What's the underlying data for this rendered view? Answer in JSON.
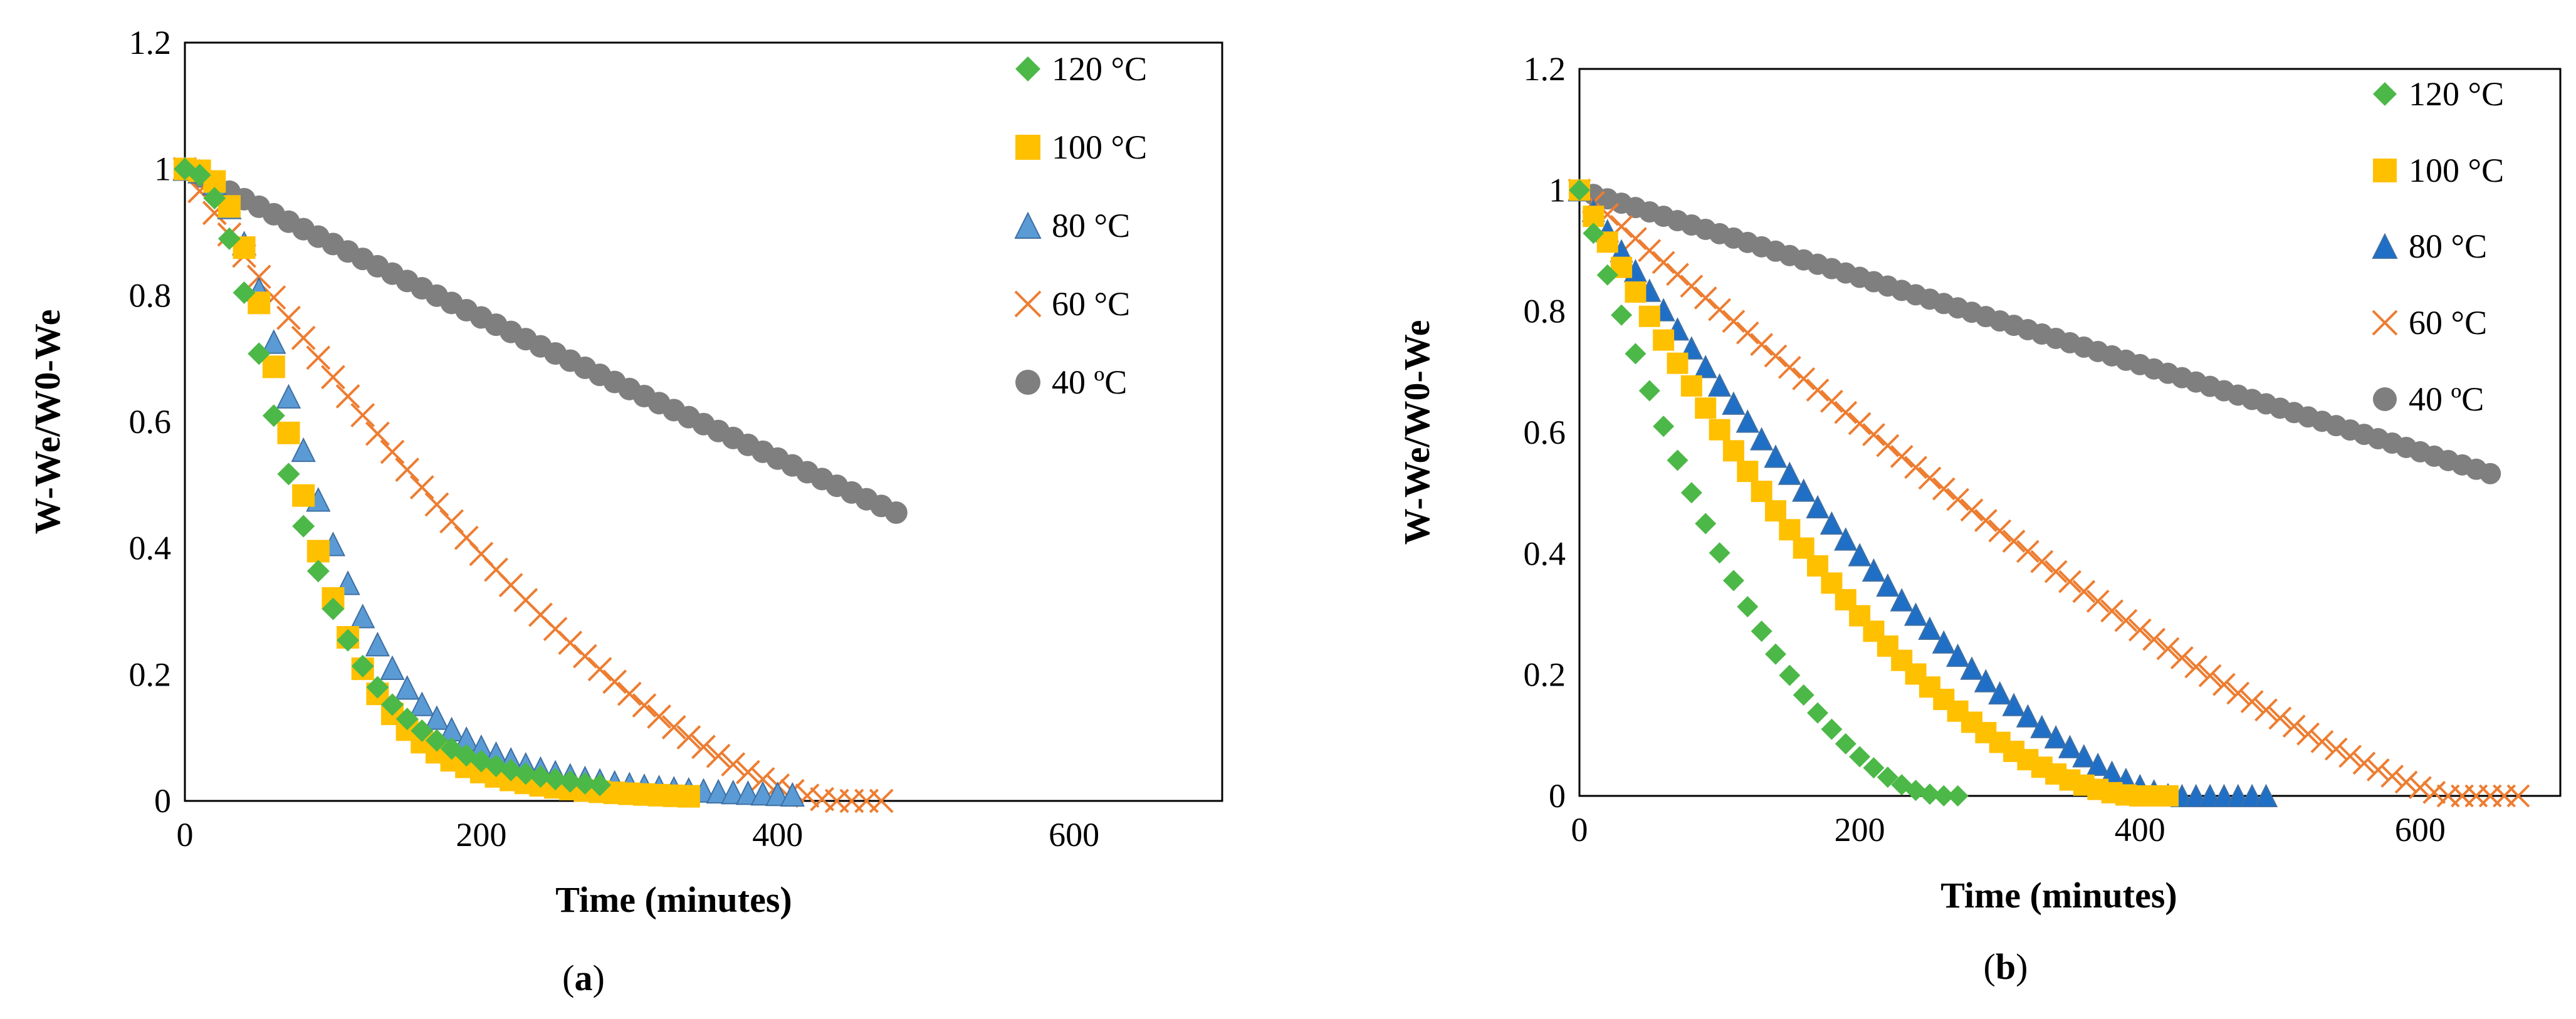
{
  "colors": {
    "120": "#4CB847",
    "100": "#FFC000",
    "80a": "#5B9BD5",
    "80b": "#1F6FC6",
    "60": "#ED7D31",
    "40": "#7F7F7F"
  },
  "chart_data": [
    {
      "id": "a",
      "type": "scatter",
      "caption_letter": "a",
      "xlabel": "Time (minutes)",
      "ylabel": "W-We/W0-We",
      "xlim": [
        0,
        700
      ],
      "ylim": [
        0,
        1.2
      ],
      "xticks": [
        "0",
        "200",
        "400",
        "600"
      ],
      "yticks": [
        "0",
        "0.2",
        "0.4",
        "0.6",
        "0.8",
        "1",
        "1.2"
      ],
      "legend": [
        "120 °C",
        "100 °C",
        "80 °C",
        "60 °C",
        "40 ºC"
      ],
      "series": [
        {
          "name": "120 °C",
          "marker": "diamond",
          "color_key": "120",
          "dx": 10,
          "end": 280,
          "shape": {
            "kind": "decay",
            "k": 1.5,
            "p": 2.3
          }
        },
        {
          "name": "100 °C",
          "marker": "square",
          "color_key": "100",
          "dx": 10,
          "end": 340,
          "shape": {
            "kind": "decay",
            "k": 1.4,
            "p": 2.8
          }
        },
        {
          "name": "80 °C",
          "marker": "triangle",
          "color_key": "80a",
          "dx": 10,
          "end": 410,
          "shape": {
            "kind": "decay",
            "k": 1.0,
            "p": 2.5
          }
        },
        {
          "name": "60 °C",
          "marker": "cross",
          "color_key": "60",
          "dx": 10,
          "end": 470,
          "shape": {
            "kind": "poly",
            "t0": 440,
            "p": 1.55
          }
        },
        {
          "name": "40 ºC",
          "marker": "circle",
          "color_key": "40",
          "dx": 10,
          "end": 480,
          "shape": {
            "kind": "poly",
            "t0": 1000,
            "p": 1.2
          }
        }
      ]
    },
    {
      "id": "b",
      "type": "scatter",
      "caption_letter": "b",
      "xlabel": "Time (minutes)",
      "ylabel": "W-We/W0-We",
      "xlim": [
        0,
        700
      ],
      "ylim": [
        0,
        1.2
      ],
      "xticks": [
        "0",
        "200",
        "400",
        "600"
      ],
      "yticks": [
        "0",
        "0.2",
        "0.4",
        "0.6",
        "0.8",
        "1",
        "1.2"
      ],
      "legend": [
        "120 °C",
        "100 °C",
        "80 °C",
        "60 °C",
        "40 ºC"
      ],
      "series": [
        {
          "name": "120 °C",
          "marker": "diamond",
          "color_key": "120",
          "dx": 10,
          "end": 270,
          "shape": {
            "kind": "poly",
            "t0": 262,
            "p": 1.9
          }
        },
        {
          "name": "100 °C",
          "marker": "square",
          "color_key": "100",
          "dx": 10,
          "end": 420,
          "shape": {
            "kind": "poly",
            "t0": 400,
            "p": 1.75
          }
        },
        {
          "name": "80 °C",
          "marker": "triangle",
          "color_key": "80b",
          "dx": 10,
          "end": 490,
          "shape": {
            "kind": "poly",
            "t0": 425,
            "p": 1.45
          }
        },
        {
          "name": "60 °C",
          "marker": "cross",
          "color_key": "60",
          "dx": 10,
          "end": 670,
          "shape": {
            "kind": "poly",
            "t0": 620,
            "p": 1.25
          }
        },
        {
          "name": "40 ºC",
          "marker": "circle",
          "color_key": "40",
          "dx": 10,
          "end": 650,
          "shape": {
            "kind": "linear",
            "slope": 0.00072
          }
        }
      ]
    }
  ]
}
